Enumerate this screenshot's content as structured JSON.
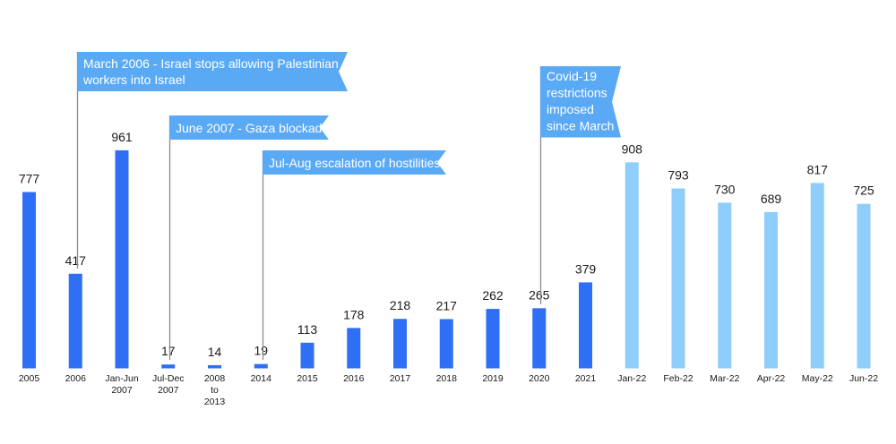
{
  "chart_data": {
    "type": "bar",
    "categories": [
      [
        "2005"
      ],
      [
        "2006"
      ],
      [
        "Jan-Jun",
        "2007"
      ],
      [
        "Jul-Dec",
        "2007"
      ],
      [
        "2008",
        "to",
        "2013"
      ],
      [
        "2014"
      ],
      [
        "2015"
      ],
      [
        "2016"
      ],
      [
        "2017"
      ],
      [
        "2018"
      ],
      [
        "2019"
      ],
      [
        "2020"
      ],
      [
        "2021"
      ],
      [
        "Jan-22"
      ],
      [
        "Feb-22"
      ],
      [
        "Mar-22"
      ],
      [
        "Apr-22"
      ],
      [
        "May-22"
      ],
      [
        "Jun-22"
      ]
    ],
    "values": [
      777,
      417,
      961,
      17,
      14,
      19,
      113,
      178,
      218,
      217,
      262,
      265,
      379,
      908,
      793,
      730,
      689,
      817,
      725
    ],
    "bar_group": [
      "annual",
      "annual",
      "annual",
      "annual",
      "annual",
      "annual",
      "annual",
      "annual",
      "annual",
      "annual",
      "annual",
      "annual",
      "annual",
      "monthly",
      "monthly",
      "monthly",
      "monthly",
      "monthly",
      "monthly"
    ],
    "colors": {
      "annual": "#2f6ff5",
      "monthly": "#8fcefa",
      "banner": "#5aa9f5",
      "leader": "#8c8c8c"
    },
    "ylim": [
      0,
      1000
    ],
    "grid": false,
    "annotations": [
      {
        "lines": [
          "March 2006 - Israel stops allowing Palestinian",
          "workers into Israel"
        ],
        "category_index": 1
      },
      {
        "lines": [
          "June 2007 - Gaza blockade"
        ],
        "category_index": 3
      },
      {
        "lines": [
          "Jul-Aug escalation of hostilities"
        ],
        "category_index": 5
      },
      {
        "lines": [
          "Covid-19",
          "restrictions",
          "imposed",
          "since March"
        ],
        "category_index": 11
      }
    ]
  }
}
